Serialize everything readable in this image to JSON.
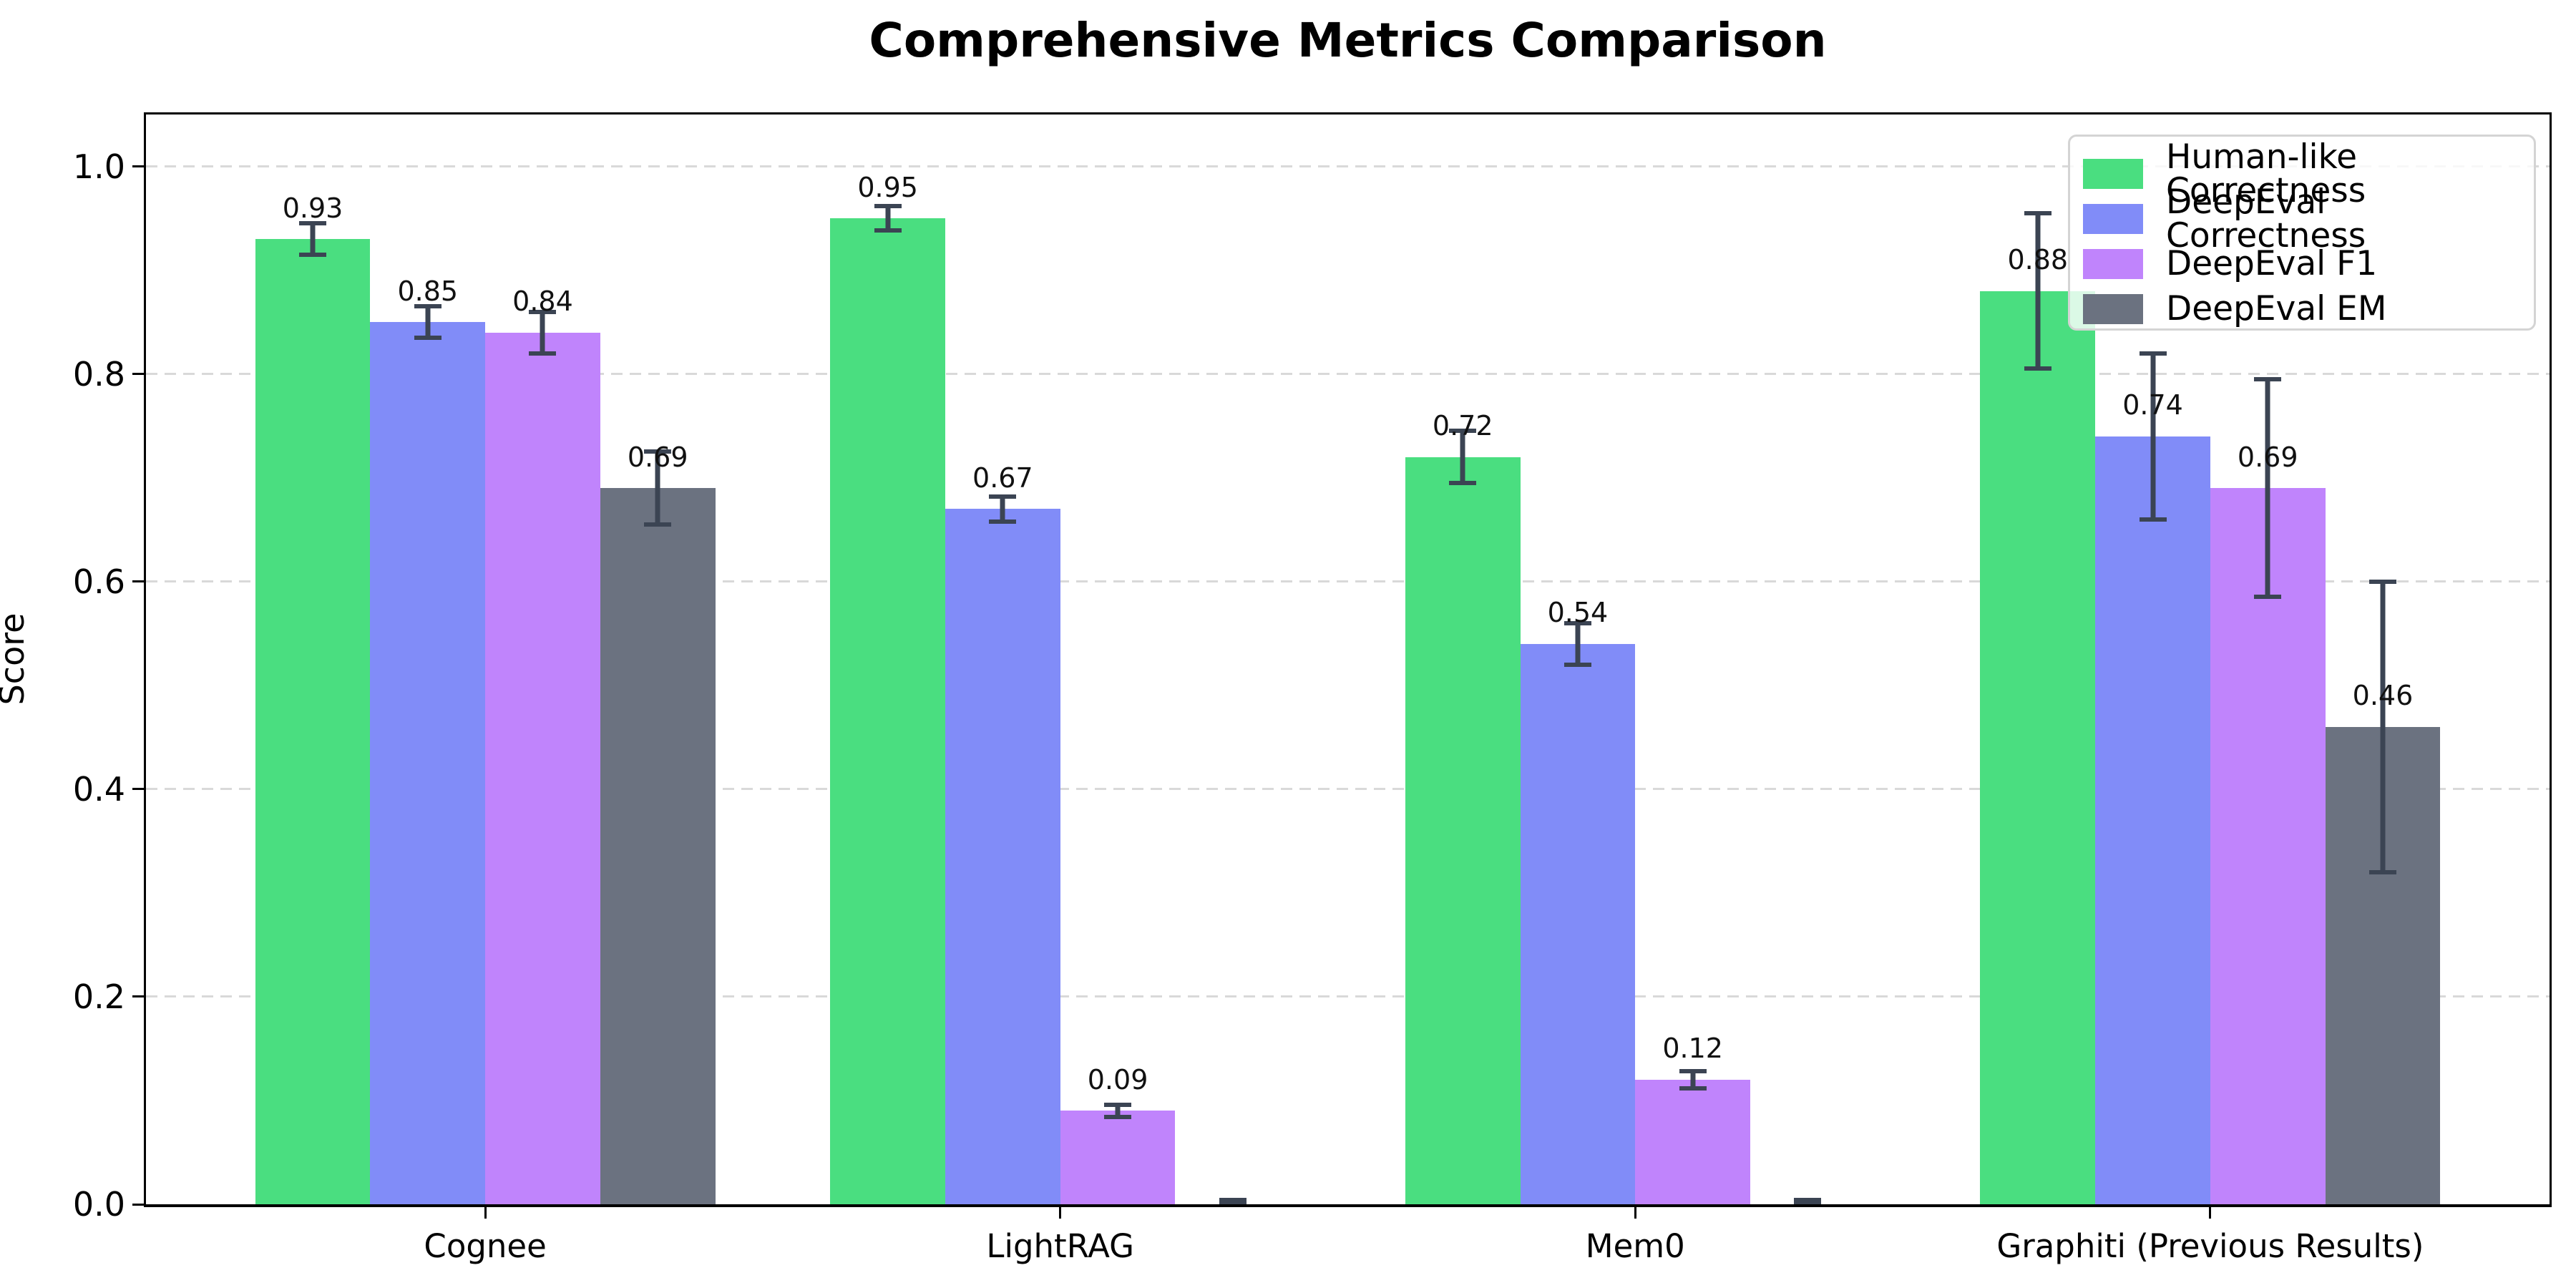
{
  "chart_data": {
    "type": "bar",
    "title": "Comprehensive Metrics Comparison",
    "ylabel": "Score",
    "xlabel": "",
    "ylim": [
      0,
      1.05
    ],
    "yticks": [
      "0.0",
      "0.2",
      "0.4",
      "0.6",
      "0.8",
      "1.0"
    ],
    "grid": "horizontal dashed",
    "legend_position": "upper right",
    "categories": [
      "Cognee",
      "LightRAG",
      "Mem0",
      "Graphiti (Previous Results)"
    ],
    "series": [
      {
        "name": "Human-like Correctness",
        "color": "#4ade80",
        "values": [
          0.93,
          0.95,
          0.72,
          0.88
        ],
        "errors": [
          0.015,
          0.012,
          0.025,
          0.075
        ],
        "bar_labels": [
          "0.93",
          "0.95",
          "0.72",
          "0.88"
        ]
      },
      {
        "name": "DeepEval Correctness",
        "color": "#818cf8",
        "values": [
          0.85,
          0.67,
          0.54,
          0.74
        ],
        "errors": [
          0.015,
          0.012,
          0.02,
          0.08
        ],
        "bar_labels": [
          "0.85",
          "0.67",
          "0.54",
          "0.74"
        ]
      },
      {
        "name": "DeepEval F1",
        "color": "#c084fc",
        "values": [
          0.84,
          0.09,
          0.12,
          0.69
        ],
        "errors": [
          0.02,
          0.006,
          0.008,
          0.105
        ],
        "bar_labels": [
          "0.84",
          "0.09",
          "0.12",
          "0.69"
        ]
      },
      {
        "name": "DeepEval EM",
        "color": "#6b7280",
        "values": [
          0.69,
          0.0,
          0.0,
          0.46
        ],
        "errors": [
          0.035,
          0.004,
          0.004,
          0.14
        ],
        "bar_labels": [
          "0.69",
          null,
          null,
          "0.46"
        ]
      }
    ],
    "error_bar_color": "#3b4453",
    "grid_color": "#d9d9d9"
  }
}
